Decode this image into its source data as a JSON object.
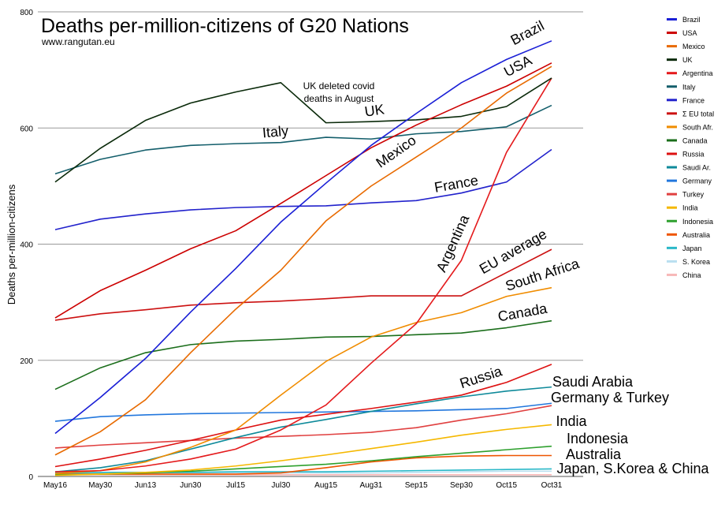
{
  "chart_data": {
    "type": "line",
    "title": "Deaths per-million-citizens of G20 Nations",
    "subtitle": "www.rangutan.eu",
    "ylabel": "Deaths per-million-citizens",
    "xlabel": "",
    "ylim": [
      0,
      800
    ],
    "yticks": [
      0,
      200,
      400,
      600,
      800
    ],
    "grid": true,
    "legend_position": "right",
    "categories": [
      "May16",
      "May30",
      "Jun13",
      "Jun30",
      "Jul15",
      "Jul30",
      "Aug15",
      "Aug31",
      "Sep15",
      "Sep30",
      "Oct15",
      "Oct31"
    ],
    "annotation": "UK deleted covid deaths in August",
    "series": [
      {
        "name": "Brazil",
        "color": "#1a1fd6",
        "values": [
          74,
          136,
          203,
          283,
          358,
          438,
          505,
          570,
          625,
          678,
          718,
          750
        ]
      },
      {
        "name": "USA",
        "color": "#cc0000",
        "values": [
          273,
          320,
          355,
          392,
          423,
          470,
          518,
          566,
          605,
          640,
          672,
          712
        ]
      },
      {
        "name": "Mexico",
        "color": "#e86a00",
        "values": [
          37,
          77,
          132,
          213,
          288,
          355,
          440,
          500,
          550,
          600,
          660,
          706
        ]
      },
      {
        "name": "UK",
        "color": "#0a2a0a",
        "values": [
          507,
          565,
          613,
          643,
          662,
          678,
          609,
          611,
          614,
          620,
          637,
          686
        ]
      },
      {
        "name": "Argentina",
        "color": "#e41a1c",
        "values": [
          8,
          10,
          18,
          30,
          47,
          80,
          123,
          195,
          263,
          372,
          558,
          686
        ]
      },
      {
        "name": "Italy",
        "color": "#135e6b",
        "values": [
          521,
          546,
          562,
          570,
          573,
          575,
          584,
          581,
          590,
          594,
          602,
          639
        ]
      },
      {
        "name": "France",
        "color": "#2222cc",
        "values": [
          425,
          443,
          452,
          459,
          463,
          465,
          466,
          471,
          475,
          488,
          507,
          563
        ]
      },
      {
        "name": "Σ EU total",
        "color": "#cc1111",
        "values": [
          269,
          280,
          287,
          295,
          299,
          302,
          306,
          311,
          311,
          311,
          351,
          391
        ]
      },
      {
        "name": "South Afr.",
        "color": "#f08c00",
        "values": [
          5,
          10,
          25,
          50,
          80,
          140,
          198,
          240,
          265,
          282,
          310,
          325
        ]
      },
      {
        "name": "Canada",
        "color": "#1b6e1b",
        "values": [
          150,
          187,
          213,
          227,
          233,
          236,
          240,
          241,
          244,
          247,
          256,
          268
        ]
      },
      {
        "name": "Russia",
        "color": "#dd1111",
        "values": [
          17,
          30,
          45,
          62,
          80,
          97,
          107,
          117,
          128,
          140,
          162,
          193
        ]
      },
      {
        "name": "Saudi Ar.",
        "color": "#0e8a9a",
        "values": [
          8,
          15,
          27,
          47,
          67,
          85,
          98,
          112,
          125,
          137,
          147,
          154
        ]
      },
      {
        "name": "Germany",
        "color": "#2277dd",
        "values": [
          95,
          103,
          106,
          108,
          109,
          110,
          111,
          112,
          113,
          115,
          117,
          126
        ]
      },
      {
        "name": "Turkey",
        "color": "#e04040",
        "values": [
          49,
          54,
          58,
          62,
          66,
          69,
          72,
          76,
          84,
          97,
          108,
          122
        ]
      },
      {
        "name": "India",
        "color": "#f5b800",
        "values": [
          2,
          4,
          7,
          11,
          18,
          27,
          37,
          48,
          59,
          71,
          81,
          89
        ]
      },
      {
        "name": "Indonesia",
        "color": "#2ea02e",
        "values": [
          3,
          4,
          6,
          9,
          13,
          17,
          21,
          27,
          34,
          40,
          46,
          52
        ]
      },
      {
        "name": "Australia",
        "color": "#ee5500",
        "values": [
          4,
          4,
          4,
          4,
          4,
          6,
          15,
          25,
          32,
          35,
          36,
          36
        ]
      },
      {
        "name": "Japan",
        "color": "#2ab8c8",
        "values": [
          6,
          7,
          7,
          7,
          8,
          8,
          8,
          9,
          10,
          11,
          12,
          13
        ]
      },
      {
        "name": "S. Korea",
        "color": "#b9dff0",
        "values": [
          5,
          5,
          5,
          6,
          6,
          6,
          6,
          6,
          7,
          8,
          9,
          9
        ]
      },
      {
        "name": "China",
        "color": "#f7b8b8",
        "values": [
          3,
          3,
          3,
          3,
          3,
          3,
          3,
          3,
          3,
          3,
          3,
          3
        ]
      }
    ],
    "labels": [
      {
        "text": "Brazil",
        "series": "Brazil",
        "rotate": -28
      },
      {
        "text": "USA",
        "series": "USA",
        "rotate": -28
      },
      {
        "text": "UK",
        "series": "UK",
        "rotate": -8
      },
      {
        "text": "Italy",
        "series": "Italy",
        "rotate": -5
      },
      {
        "text": "Mexico",
        "series": "Mexico",
        "rotate": -35
      },
      {
        "text": "France",
        "series": "France",
        "rotate": -10
      },
      {
        "text": "Argentina",
        "series": "Argentina",
        "rotate": -66
      },
      {
        "text": "EU average",
        "series": "Σ EU total",
        "rotate": -30
      },
      {
        "text": "South Africa",
        "series": "South Afr.",
        "rotate": -18
      },
      {
        "text": "Canada",
        "series": "Canada",
        "rotate": -10
      },
      {
        "text": "Russia",
        "series": "Russia",
        "rotate": -18
      },
      {
        "text": "Saudi Arabia",
        "series": "Saudi Ar.",
        "rotate": 0
      },
      {
        "text": "Germany & Turkey",
        "series": "Germany",
        "rotate": 0
      },
      {
        "text": "India",
        "series": "India",
        "rotate": 0
      },
      {
        "text": "Indonesia",
        "series": "Indonesia",
        "rotate": 0
      },
      {
        "text": "Australia",
        "series": "Australia",
        "rotate": 0
      },
      {
        "text": "Japan, S.Korea & China",
        "series": "Japan",
        "rotate": 0
      }
    ]
  }
}
